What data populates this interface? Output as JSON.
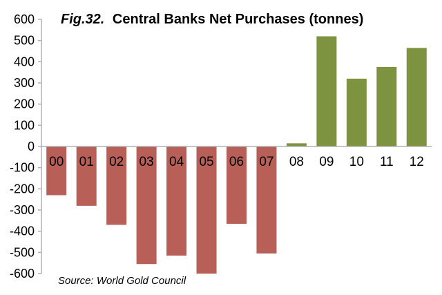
{
  "chart_data": {
    "type": "bar",
    "title_prefix": "Fig.32.",
    "title": "Central Banks Net Purchases (tonnes)",
    "source": "Source: World Gold Council",
    "categories": [
      "00",
      "01",
      "02",
      "03",
      "04",
      "05",
      "06",
      "07",
      "08",
      "09",
      "10",
      "11",
      "12"
    ],
    "values": [
      -230,
      -280,
      -370,
      -555,
      -515,
      -600,
      -365,
      -505,
      15,
      520,
      320,
      375,
      465
    ],
    "ylim": [
      -600,
      600
    ],
    "yticks": [
      600,
      500,
      400,
      300,
      200,
      100,
      0,
      -100,
      -200,
      -300,
      -400,
      -500,
      -600
    ],
    "grid": false,
    "colors": {
      "negative": "#b85f58",
      "positive": "#7e933f",
      "axis": "#b0b0b0",
      "text": "#000000"
    }
  }
}
